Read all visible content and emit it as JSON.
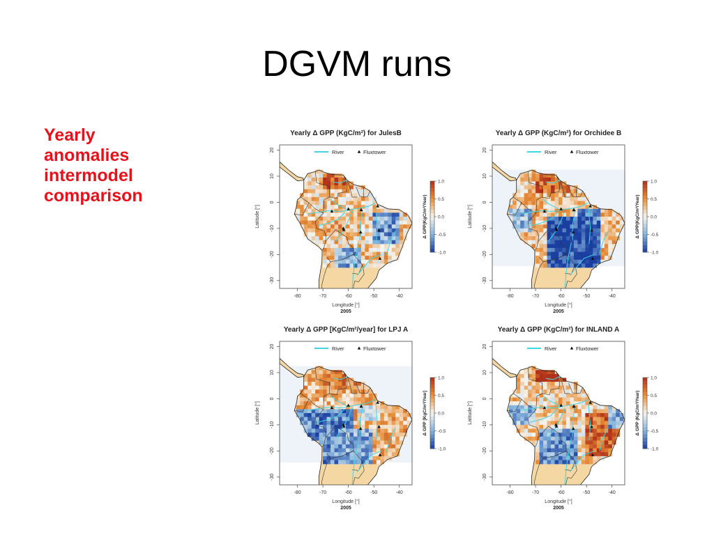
{
  "slide": {
    "title": "DGVM runs",
    "side_label": [
      "Yearly",
      "anomalies",
      "intermodel",
      "comparison"
    ]
  },
  "colors": {
    "side_label": "#e8101a",
    "river": "#3fd6e0",
    "land_base": "#f4d7a3",
    "positive_strong": "#b0301a",
    "positive": "#e8903a",
    "near_zero": "#f5f4ee",
    "negative": "#86b4dc",
    "negative_strong": "#1a3fa0",
    "domain_bg": "#eef3fa"
  },
  "chart_data": [
    {
      "type": "heatmap",
      "title": "Yearly Δ GPP (KgC/m²) for JulesB",
      "xlabel": "Longitude [°]",
      "ylabel": "Latitude [°]",
      "sublabel": "2005",
      "xlim": [
        -87,
        -35
      ],
      "ylim": [
        -33,
        22
      ],
      "xticks": [
        "-80",
        "-70",
        "-60",
        "-50",
        "-40"
      ],
      "yticks": [
        "20",
        "10",
        "0",
        "-10",
        "-20",
        "-30"
      ],
      "colorbar": {
        "label": "Δ GPP(KgC/m²/Year)",
        "range": [
          -1.0,
          1.0
        ],
        "ticks": [
          "1.0",
          "0.5",
          "0.0",
          "-0.5",
          "-1.0"
        ]
      },
      "legend": {
        "position": "top",
        "entries": [
          "River",
          "Fluxtower"
        ]
      },
      "domain_shaded": false,
      "pattern": "mixed"
    },
    {
      "type": "heatmap",
      "title": "Yearly Δ GPP (KgC/m²) for Orchidee B",
      "xlabel": "Longitude [°]",
      "ylabel": "Latitude [°]",
      "sublabel": "2005",
      "xlim": [
        -87,
        -35
      ],
      "ylim": [
        -33,
        22
      ],
      "xticks": [
        "-80",
        "-70",
        "-60",
        "-50",
        "-40"
      ],
      "yticks": [
        "20",
        "10",
        "0",
        "-10",
        "-20",
        "-30"
      ],
      "colorbar": {
        "label": "Δ GPP(KgC/m²/Year)",
        "range": [
          -1.0,
          1.0
        ],
        "ticks": [
          "1.0",
          "0.5",
          "0.0",
          "-0.5",
          "-1.0"
        ]
      },
      "legend": {
        "position": "top",
        "entries": [
          "River",
          "Fluxtower"
        ]
      },
      "domain_shaded": true,
      "pattern": "strong-negative-south"
    },
    {
      "type": "heatmap",
      "title": "Yearly Δ GPP [KgC/m²/year] for LPJ A",
      "xlabel": "Longitude [°]",
      "ylabel": "Latitude [°]",
      "sublabel": "2005",
      "xlim": [
        -87,
        -35
      ],
      "ylim": [
        -33,
        22
      ],
      "xticks": [
        "-80",
        "-70",
        "-60",
        "-50",
        "-40"
      ],
      "yticks": [
        "20",
        "10",
        "0",
        "-10",
        "-20",
        "-30"
      ],
      "colorbar": {
        "label": "Δ GPP [KgC/m²/Year]",
        "range": [
          -1.0,
          1.0
        ],
        "ticks": [
          "1.0",
          "0.5",
          "0.0",
          "-0.5",
          "-1.0"
        ]
      },
      "legend": {
        "position": "top",
        "entries": [
          "River",
          "Fluxtower"
        ]
      },
      "domain_shaded": true,
      "pattern": "negative-west"
    },
    {
      "type": "heatmap",
      "title": "Yearly Δ GPP (KgC/m²) for INLAND A",
      "xlabel": "Longitude [°]",
      "ylabel": "Latitude [°]",
      "sublabel": "2005",
      "xlim": [
        -87,
        -35
      ],
      "ylim": [
        -33,
        22
      ],
      "xticks": [
        "-80",
        "-70",
        "-60",
        "-50",
        "-40"
      ],
      "yticks": [
        "20",
        "10",
        "0",
        "-10",
        "-20",
        "-30"
      ],
      "colorbar": {
        "label": "Δ GPP (KgC/m²/Year)",
        "range": [
          -1.0,
          1.0
        ],
        "ticks": [
          "1.0",
          "0.5",
          "0.0",
          "-0.5",
          "-1.0"
        ]
      },
      "legend": {
        "position": "top",
        "entries": [
          "River",
          "Fluxtower"
        ]
      },
      "domain_shaded": false,
      "pattern": "positive-east"
    }
  ]
}
